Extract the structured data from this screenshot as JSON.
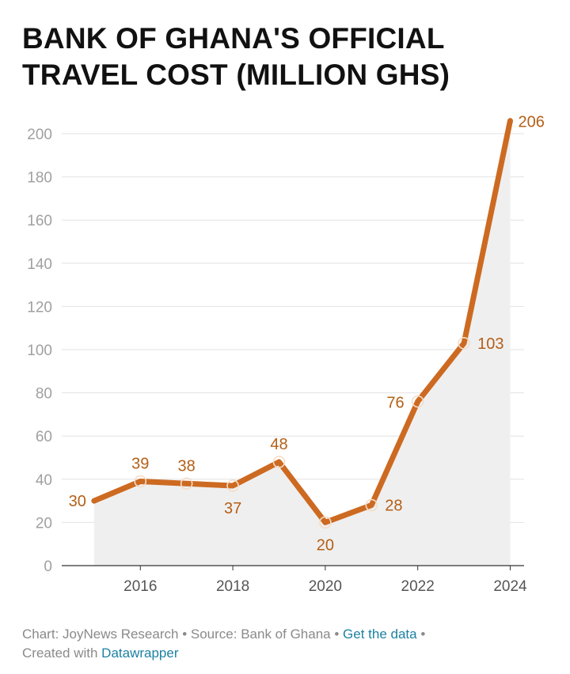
{
  "title_lines": [
    "BANK OF GHANA'S OFFICIAL",
    "TRAVEL COST (MILLION GHS)"
  ],
  "footer": {
    "chart_by": "Chart: JoyNews Research",
    "source": "Source: Bank of Ghana",
    "get_data": "Get the data",
    "created_with": "Created with",
    "tool": "Datawrapper",
    "separator": "•"
  },
  "colors": {
    "line": "#cd6a21",
    "label": "#b45f16",
    "area": "#efefef",
    "grid": "#e2e2e2"
  },
  "chart_data": {
    "type": "line",
    "title": "BANK OF GHANA'S OFFICIAL TRAVEL COST (MILLION GHS)",
    "x": [
      2015,
      2016,
      2017,
      2018,
      2019,
      2020,
      2021,
      2022,
      2023,
      2024
    ],
    "series": [
      {
        "values": [
          30,
          39,
          38,
          37,
          48,
          20,
          28,
          76,
          103,
          206
        ]
      }
    ],
    "data_labels": [
      "30",
      "39",
      "38",
      "37",
      "48",
      "20",
      "28",
      "76",
      "103",
      "206"
    ],
    "x_ticks": [
      2016,
      2018,
      2020,
      2022,
      2024
    ],
    "x_tick_labels": [
      "2016",
      "2018",
      "2020",
      "2022",
      "2024"
    ],
    "y_ticks": [
      0,
      20,
      40,
      60,
      80,
      100,
      120,
      140,
      160,
      180,
      200
    ],
    "y_tick_labels": [
      "0",
      "20",
      "40",
      "60",
      "80",
      "100",
      "120",
      "140",
      "160",
      "180",
      "200"
    ],
    "xlim": [
      2014.3,
      2024.3
    ],
    "ylim": [
      0,
      200
    ],
    "xlabel": "",
    "ylabel": "",
    "grid": true,
    "area_fill": true
  }
}
